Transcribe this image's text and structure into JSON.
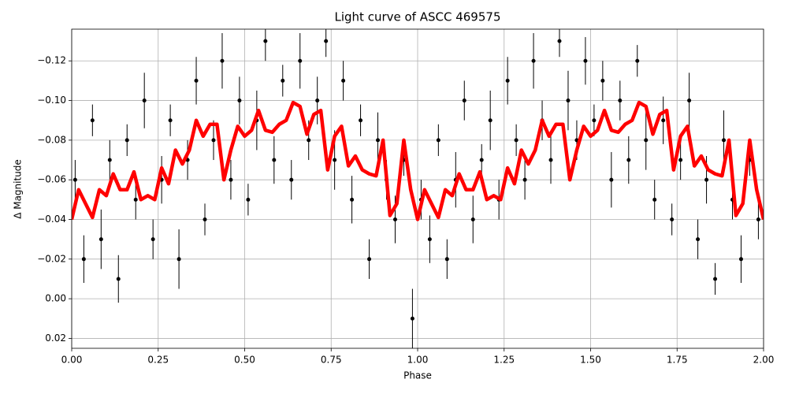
{
  "chart_data": {
    "type": "scatter",
    "title": "Light curve of ASCC 469575",
    "x_label": "Phase",
    "y_label": "Δ Magnitude",
    "xlim": [
      0,
      2
    ],
    "ylim": [
      0.025,
      -0.136
    ],
    "grid": true,
    "xticks": [
      {
        "value": 0,
        "label": "0.00"
      },
      {
        "value": 0.25,
        "label": "0.25"
      },
      {
        "value": 0.5,
        "label": "0.50"
      },
      {
        "value": 0.75,
        "label": "0.75"
      },
      {
        "value": 1,
        "label": "1.00"
      },
      {
        "value": 1.25,
        "label": "1.25"
      },
      {
        "value": 1.5,
        "label": "1.50"
      },
      {
        "value": 1.75,
        "label": "1.75"
      },
      {
        "value": 2,
        "label": "2.00"
      }
    ],
    "yticks": [
      {
        "value": -0.12,
        "label": "−0.12"
      },
      {
        "value": -0.1,
        "label": "−0.10"
      },
      {
        "value": -0.08,
        "label": "−0.08"
      },
      {
        "value": -0.06,
        "label": "−0.06"
      },
      {
        "value": -0.04,
        "label": "−0.04"
      },
      {
        "value": -0.02,
        "label": "−0.02"
      },
      {
        "value": 0,
        "label": "0.00"
      },
      {
        "value": 0.02,
        "label": "0.02"
      }
    ],
    "series": [
      {
        "type": "errorbar",
        "color": "#000000",
        "x": [
          0.01,
          0.035,
          0.06,
          0.085,
          0.11,
          0.135,
          0.16,
          0.185,
          0.21,
          0.235,
          0.26,
          0.285,
          0.31,
          0.335,
          0.36,
          0.385,
          0.41,
          0.435,
          0.46,
          0.485,
          0.51,
          0.535,
          0.56,
          0.585,
          0.61,
          0.635,
          0.66,
          0.685,
          0.71,
          0.735,
          0.76,
          0.785,
          0.81,
          0.835,
          0.86,
          0.885,
          0.91,
          0.935,
          0.96,
          0.985,
          1.01,
          1.035,
          1.06,
          1.085,
          1.11,
          1.135,
          1.16,
          1.185,
          1.21,
          1.235,
          1.26,
          1.285,
          1.31,
          1.335,
          1.36,
          1.385,
          1.41,
          1.435,
          1.46,
          1.485,
          1.51,
          1.535,
          1.56,
          1.585,
          1.61,
          1.635,
          1.66,
          1.685,
          1.71,
          1.735,
          1.76,
          1.785,
          1.81,
          1.835,
          1.86,
          1.885,
          1.91,
          1.935,
          1.96,
          1.985
        ],
        "values": [
          -0.06,
          -0.02,
          -0.09,
          -0.03,
          -0.07,
          -0.01,
          -0.08,
          -0.05,
          -0.1,
          -0.03,
          -0.06,
          -0.09,
          -0.02,
          -0.07,
          -0.11,
          -0.04,
          -0.08,
          -0.12,
          -0.06,
          -0.1,
          -0.05,
          -0.09,
          -0.13,
          -0.07,
          -0.11,
          -0.06,
          -0.12,
          -0.08,
          -0.1,
          -0.13,
          -0.07,
          -0.11,
          -0.05,
          -0.09,
          -0.02,
          -0.08,
          -0.06,
          -0.04,
          -0.07,
          0.01,
          -0.05,
          -0.03,
          -0.08,
          -0.02,
          -0.06,
          -0.1,
          -0.04,
          -0.07,
          -0.09,
          -0.05,
          -0.11,
          -0.08,
          -0.06,
          -0.12,
          -0.09,
          -0.07,
          -0.13,
          -0.1,
          -0.08,
          -0.12,
          -0.09,
          -0.11,
          -0.06,
          -0.1,
          -0.07,
          -0.12,
          -0.08,
          -0.05,
          -0.09,
          -0.04,
          -0.07,
          -0.1,
          -0.03,
          -0.06,
          -0.01,
          -0.08,
          -0.05,
          -0.02,
          -0.07,
          -0.04
        ],
        "errors": [
          0.01,
          0.012,
          0.008,
          0.015,
          0.01,
          0.012,
          0.008,
          0.01,
          0.014,
          0.01,
          0.012,
          0.008,
          0.015,
          0.01,
          0.012,
          0.008,
          0.01,
          0.014,
          0.01,
          0.012,
          0.008,
          0.015,
          0.01,
          0.012,
          0.008,
          0.01,
          0.014,
          0.01,
          0.012,
          0.008,
          0.015,
          0.01,
          0.012,
          0.008,
          0.01,
          0.014,
          0.01,
          0.012,
          0.008,
          0.015,
          0.01,
          0.012,
          0.008,
          0.01,
          0.014,
          0.01,
          0.012,
          0.008,
          0.015,
          0.01,
          0.012,
          0.008,
          0.01,
          0.014,
          0.01,
          0.012,
          0.008,
          0.015,
          0.01,
          0.012,
          0.008,
          0.01,
          0.014,
          0.01,
          0.012,
          0.008,
          0.015,
          0.01,
          0.012,
          0.008,
          0.01,
          0.014,
          0.01,
          0.012,
          0.008,
          0.015,
          0.01,
          0.012,
          0.008,
          0.01
        ]
      },
      {
        "type": "line",
        "color": "#ff0000",
        "x": [
          0,
          0.02,
          0.04,
          0.06,
          0.08,
          0.1,
          0.12,
          0.14,
          0.16,
          0.18,
          0.2,
          0.22,
          0.24,
          0.26,
          0.28,
          0.3,
          0.32,
          0.34,
          0.36,
          0.38,
          0.4,
          0.42,
          0.44,
          0.46,
          0.48,
          0.5,
          0.52,
          0.54,
          0.56,
          0.58,
          0.6,
          0.62,
          0.64,
          0.66,
          0.68,
          0.7,
          0.72,
          0.74,
          0.76,
          0.78,
          0.8,
          0.82,
          0.84,
          0.86,
          0.88,
          0.9,
          0.92,
          0.94,
          0.96,
          0.98,
          1,
          1.02,
          1.04,
          1.06,
          1.08,
          1.1,
          1.12,
          1.14,
          1.16,
          1.18,
          1.2,
          1.22,
          1.24,
          1.26,
          1.28,
          1.3,
          1.32,
          1.34,
          1.36,
          1.38,
          1.4,
          1.42,
          1.44,
          1.46,
          1.48,
          1.5,
          1.52,
          1.54,
          1.56,
          1.58,
          1.6,
          1.62,
          1.64,
          1.66,
          1.68,
          1.7,
          1.72,
          1.74,
          1.76,
          1.78,
          1.8,
          1.82,
          1.84,
          1.86,
          1.88,
          1.9,
          1.92,
          1.94,
          1.96,
          1.98,
          2
        ],
        "values": [
          -0.04,
          -0.055,
          -0.048,
          -0.041,
          -0.055,
          -0.052,
          -0.063,
          -0.055,
          -0.055,
          -0.064,
          -0.05,
          -0.052,
          -0.05,
          -0.066,
          -0.058,
          -0.075,
          -0.068,
          -0.075,
          -0.09,
          -0.082,
          -0.088,
          -0.088,
          -0.06,
          -0.075,
          -0.087,
          -0.082,
          -0.085,
          -0.095,
          -0.085,
          -0.084,
          -0.088,
          -0.09,
          -0.099,
          -0.097,
          -0.083,
          -0.093,
          -0.095,
          -0.065,
          -0.082,
          -0.087,
          -0.067,
          -0.072,
          -0.065,
          -0.063,
          -0.062,
          -0.08,
          -0.042,
          -0.048,
          -0.08,
          -0.055,
          -0.04,
          -0.055,
          -0.048,
          -0.041,
          -0.055,
          -0.052,
          -0.063,
          -0.055,
          -0.055,
          -0.064,
          -0.05,
          -0.052,
          -0.05,
          -0.066,
          -0.058,
          -0.075,
          -0.068,
          -0.075,
          -0.09,
          -0.082,
          -0.088,
          -0.088,
          -0.06,
          -0.075,
          -0.087,
          -0.082,
          -0.085,
          -0.095,
          -0.085,
          -0.084,
          -0.088,
          -0.09,
          -0.099,
          -0.097,
          -0.083,
          -0.093,
          -0.095,
          -0.065,
          -0.082,
          -0.087,
          -0.067,
          -0.072,
          -0.065,
          -0.063,
          -0.062,
          -0.08,
          -0.042,
          -0.048,
          -0.08,
          -0.055,
          -0.04
        ]
      }
    ]
  }
}
